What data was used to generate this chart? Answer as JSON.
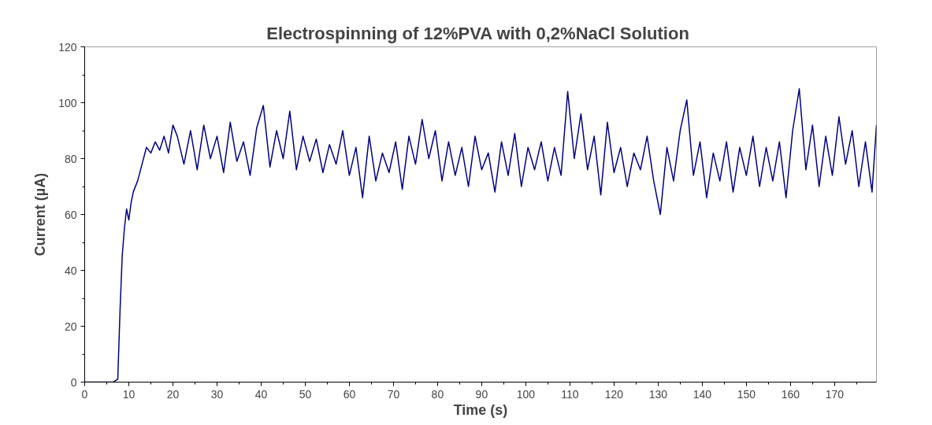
{
  "chart_data": {
    "type": "line",
    "title": "Electrospinning of 12%PVA  with 0,2%NaCl Solution",
    "xlabel": "Time (s)",
    "ylabel": "Current (µA)",
    "x": [
      0,
      6.5,
      7,
      7.5,
      8,
      8.5,
      9,
      9.5,
      10,
      10.5,
      11,
      12,
      13,
      14,
      15,
      16,
      17,
      18,
      19,
      20,
      21,
      22.5,
      24,
      25.5,
      27,
      28.5,
      30,
      31.5,
      33,
      34.5,
      36,
      37.5,
      39,
      40.5,
      42,
      43.5,
      45,
      46.5,
      48,
      49.5,
      51,
      52.5,
      54,
      55.5,
      57,
      58.5,
      60,
      61.5,
      63,
      64.5,
      66,
      67.5,
      69,
      70.5,
      72,
      73.5,
      75,
      76.5,
      78,
      79.5,
      81,
      82.5,
      84,
      85.5,
      87,
      88.5,
      90,
      91.5,
      93,
      94.5,
      96,
      97.5,
      99,
      100.5,
      102,
      103.5,
      105,
      106.5,
      108,
      109.5,
      111,
      112.5,
      114,
      115.5,
      117,
      118.5,
      120,
      121.5,
      123,
      124.5,
      126,
      127.5,
      129,
      130.5,
      132,
      133.5,
      135,
      136.5,
      138,
      139.5,
      141,
      142.5,
      144,
      145.5,
      147,
      148.5,
      150,
      151.5,
      153,
      154.5,
      156,
      157.5,
      159,
      160.5,
      162,
      163.5,
      165,
      166.5,
      168,
      169.5,
      171,
      172.5,
      174,
      175.5,
      177,
      178.5,
      179.5
    ],
    "series": [
      {
        "color": "#000080",
        "values": [
          0,
          0,
          0.5,
          1,
          25,
          45,
          55,
          62,
          58,
          64,
          68,
          72,
          78,
          84,
          82,
          86,
          83,
          88,
          82,
          92,
          88,
          78,
          90,
          76,
          92,
          80,
          88,
          75,
          93,
          79,
          86,
          74,
          91,
          99,
          77,
          90,
          80,
          97,
          76,
          88,
          79,
          87,
          75,
          85,
          78,
          90,
          74,
          84,
          66,
          88,
          72,
          82,
          75,
          86,
          69,
          88,
          78,
          94,
          80,
          90,
          72,
          86,
          74,
          84,
          70,
          88,
          76,
          82,
          68,
          86,
          74,
          89,
          70,
          84,
          76,
          86,
          72,
          84,
          74,
          104,
          80,
          96,
          76,
          88,
          67,
          93,
          75,
          84,
          70,
          82,
          76,
          88,
          72,
          60,
          84,
          72,
          90,
          101,
          74,
          86,
          66,
          82,
          72,
          86,
          68,
          84,
          74,
          88,
          70,
          84,
          72,
          86,
          66,
          90,
          105,
          76,
          92,
          70,
          88,
          74,
          95,
          78,
          90,
          70,
          86,
          68,
          92
        ]
      }
    ],
    "xlim": [
      0,
      179.5
    ],
    "xticks": [
      0,
      10,
      20,
      30,
      40,
      50,
      60,
      70,
      80,
      90,
      100,
      110,
      120,
      130,
      140,
      150,
      160,
      170
    ],
    "ylim": [
      0,
      120
    ],
    "yticks": [
      0,
      20,
      40,
      60,
      80,
      100,
      120
    ],
    "grid": false,
    "marker": "none",
    "line_style": "solid"
  }
}
